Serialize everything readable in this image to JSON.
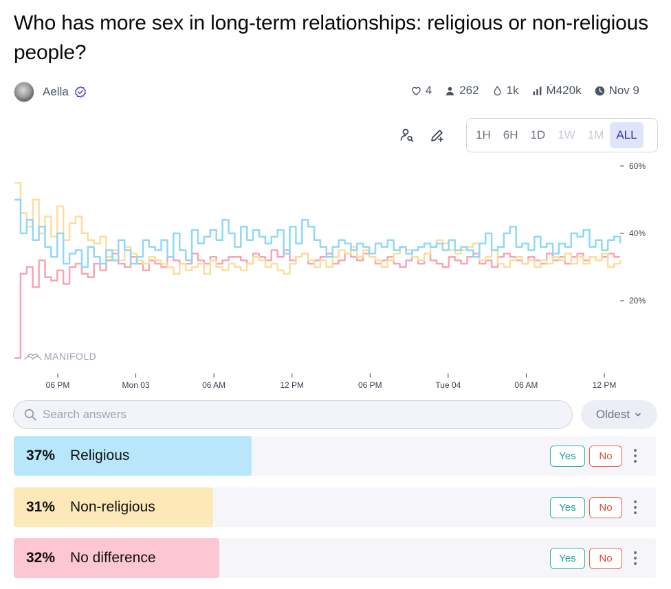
{
  "market": {
    "title": "Who has more sex in long-term relationships: religious or non-religious people?",
    "author": "Aella"
  },
  "stats": {
    "likes": "4",
    "traders": "262",
    "liquidity": "1k",
    "volume": "Ṁ420k",
    "close_date": "Nov 9"
  },
  "time_ranges": [
    {
      "label": "1H",
      "state": "enabled"
    },
    {
      "label": "6H",
      "state": "enabled"
    },
    {
      "label": "1D",
      "state": "enabled"
    },
    {
      "label": "1W",
      "state": "disabled"
    },
    {
      "label": "1M",
      "state": "disabled"
    },
    {
      "label": "ALL",
      "state": "active"
    }
  ],
  "chart_data": {
    "type": "line",
    "watermark": "MANIFOLD",
    "x_ticks": [
      "06 PM",
      "Mon 03",
      "06 AM",
      "12 PM",
      "06 PM",
      "Tue 04",
      "06 AM",
      "12 PM"
    ],
    "y_ticks": [
      "60%",
      "40%",
      "20%"
    ],
    "y_tick_values": [
      60,
      40,
      20
    ],
    "ylim": [
      -2,
      62
    ],
    "colors": {
      "Religious": "#8fd8f7",
      "Non-religious": "#fcdd9c",
      "No difference": "#f7a4b5"
    },
    "series": [
      {
        "name": "Religious",
        "values": [
          50,
          40,
          44,
          38,
          42,
          36,
          33,
          40,
          31,
          34,
          35,
          30,
          36,
          33,
          31,
          35,
          32,
          38,
          35,
          31,
          33,
          38,
          36,
          35,
          38,
          33,
          40,
          35,
          32,
          41,
          37,
          39,
          41,
          38,
          44,
          40,
          36,
          42,
          38,
          41,
          39,
          37,
          39,
          41,
          34,
          42,
          37,
          44,
          42,
          38,
          36,
          33,
          36,
          38,
          37,
          35,
          37,
          36,
          34,
          37,
          36,
          38,
          35,
          36,
          34,
          35,
          36,
          37,
          36,
          37,
          35,
          38,
          35,
          36,
          35,
          33,
          37,
          40,
          35,
          36,
          40,
          42,
          36,
          37,
          35,
          39,
          36,
          37,
          34,
          37,
          36,
          40,
          39,
          41,
          36,
          38,
          35,
          38,
          39,
          37
        ]
      },
      {
        "name": "Non-religious",
        "values": [
          55,
          46,
          42,
          50,
          40,
          45,
          39,
          48,
          38,
          43,
          45,
          40,
          38,
          37,
          39,
          33,
          35,
          32,
          36,
          34,
          32,
          31,
          33,
          32,
          31,
          30,
          28,
          31,
          29,
          30,
          31,
          28,
          32,
          30,
          29,
          31,
          30,
          29,
          31,
          33,
          32,
          30,
          31,
          29,
          28,
          31,
          33,
          34,
          32,
          30,
          32,
          30,
          33,
          35,
          34,
          36,
          33,
          35,
          33,
          32,
          30,
          32,
          34,
          36,
          35,
          33,
          32,
          34,
          36,
          38,
          37,
          35,
          34,
          35,
          36,
          37,
          32,
          33,
          35,
          31,
          30,
          32,
          33,
          31,
          32,
          30,
          32,
          31,
          33,
          32,
          34,
          31,
          33,
          31,
          33,
          32,
          34,
          30,
          31,
          32
        ]
      },
      {
        "name": "No difference",
        "values": [
          3,
          28,
          30,
          24,
          32,
          27,
          26,
          29,
          25,
          30,
          31,
          28,
          27,
          31,
          29,
          32,
          34,
          31,
          30,
          33,
          31,
          29,
          32,
          31,
          30,
          33,
          32,
          31,
          31,
          34,
          32,
          31,
          33,
          31,
          32,
          33,
          33,
          32,
          31,
          34,
          33,
          32,
          35,
          33,
          35,
          32,
          33,
          34,
          31,
          32,
          33,
          34,
          31,
          32,
          34,
          33,
          32,
          34,
          33,
          31,
          32,
          33,
          31,
          30,
          32,
          33,
          31,
          34,
          32,
          31,
          30,
          33,
          32,
          31,
          33,
          34,
          31,
          32,
          30,
          33,
          34,
          33,
          32,
          31,
          33,
          32,
          31,
          34,
          32,
          33,
          31,
          33,
          34,
          32,
          33,
          32,
          33,
          34,
          33,
          33
        ]
      }
    ]
  },
  "search": {
    "placeholder": "Search answers"
  },
  "sort": {
    "label": "Oldest"
  },
  "answers": [
    {
      "percent": "37%",
      "prob": 0.37,
      "label": "Religious",
      "color": "#b8e7fb",
      "yes": "Yes",
      "no": "No"
    },
    {
      "percent": "31%",
      "prob": 0.31,
      "label": "Non-religious",
      "color": "#fde8b8",
      "yes": "Yes",
      "no": "No"
    },
    {
      "percent": "32%",
      "prob": 0.32,
      "label": "No difference",
      "color": "#fcc7d2",
      "yes": "Yes",
      "no": "No"
    }
  ]
}
